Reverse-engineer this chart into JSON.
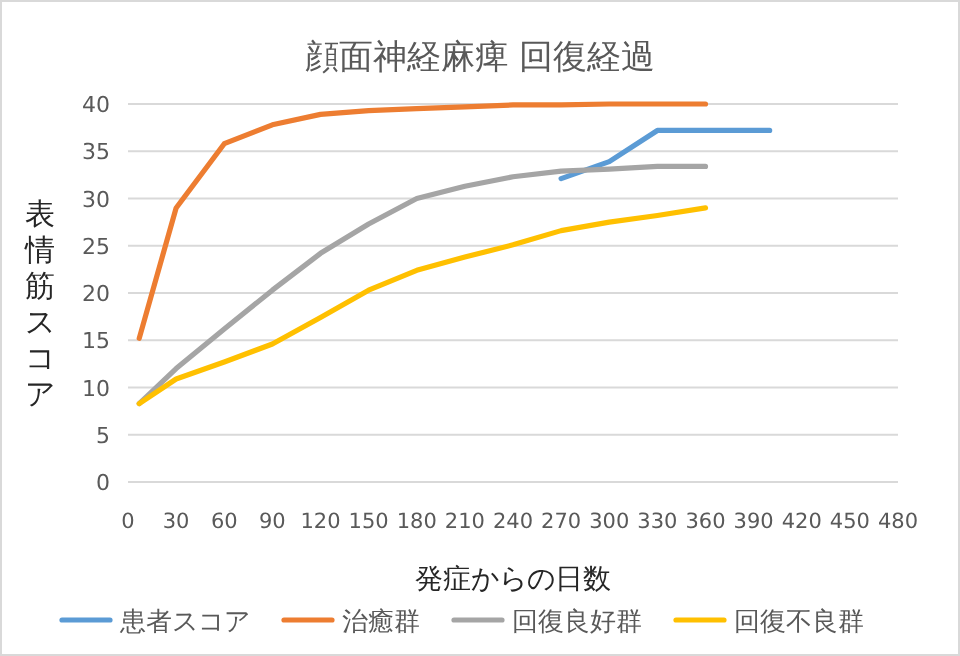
{
  "chart_data": {
    "type": "line",
    "title": "顔面神経麻痺 回復経過",
    "xlabel": "発症からの日数",
    "ylabel": "表情筋スコア",
    "xlim": [
      0,
      480
    ],
    "xticks": [
      0,
      30,
      60,
      90,
      120,
      150,
      180,
      210,
      240,
      270,
      300,
      330,
      360,
      390,
      420,
      450,
      480
    ],
    "ylim": [
      0,
      40
    ],
    "yticks": [
      0,
      5,
      10,
      15,
      20,
      25,
      30,
      35,
      40
    ],
    "grid": "y",
    "legend": "bottom",
    "series": [
      {
        "name": "患者スコア",
        "color": "#5b9bd5",
        "x": [
          270,
          300,
          330,
          400
        ],
        "values": [
          32.1,
          33.9,
          37.2,
          37.2
        ]
      },
      {
        "name": "治癒群",
        "color": "#ed7d31",
        "x": [
          7,
          30,
          60,
          90,
          120,
          150,
          180,
          210,
          240,
          270,
          300,
          330,
          360
        ],
        "values": [
          15.2,
          29,
          35.8,
          37.8,
          38.9,
          39.3,
          39.5,
          39.7,
          39.9,
          39.9,
          40,
          40,
          40
        ]
      },
      {
        "name": "回復良好群",
        "color": "#a5a5a5",
        "x": [
          7,
          30,
          60,
          90,
          120,
          150,
          180,
          210,
          240,
          270,
          300,
          330,
          360
        ],
        "values": [
          8.3,
          12,
          16.2,
          20.3,
          24.2,
          27.3,
          30,
          31.3,
          32.3,
          32.9,
          33.1,
          33.4,
          33.4
        ]
      },
      {
        "name": "回復不良群",
        "color": "#ffc000",
        "x": [
          7,
          30,
          60,
          90,
          120,
          150,
          180,
          210,
          240,
          270,
          300,
          330,
          360
        ],
        "values": [
          8.3,
          10.9,
          12.7,
          14.6,
          17.4,
          20.3,
          22.4,
          23.8,
          25.1,
          26.6,
          27.5,
          28.2,
          29
        ]
      }
    ]
  }
}
